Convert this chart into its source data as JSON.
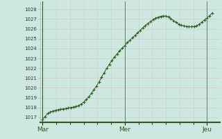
{
  "title": "",
  "bg_color": "#cce8e0",
  "grid_color": "#b8d8d0",
  "line_color": "#2d5a1e",
  "marker_color": "#2d5a1e",
  "ylim": [
    1016.5,
    1028.8
  ],
  "yticks": [
    1017,
    1018,
    1019,
    1020,
    1021,
    1022,
    1023,
    1024,
    1025,
    1026,
    1027,
    1028
  ],
  "xtick_labels": [
    "Mar",
    "Mer",
    "Jeu"
  ],
  "xtick_positions": [
    0,
    32,
    64
  ],
  "xlim": [
    -1,
    69
  ],
  "x_values": [
    0,
    1,
    2,
    3,
    4,
    5,
    6,
    7,
    8,
    9,
    10,
    11,
    12,
    13,
    14,
    15,
    16,
    17,
    18,
    19,
    20,
    21,
    22,
    23,
    24,
    25,
    26,
    27,
    28,
    29,
    30,
    31,
    32,
    33,
    34,
    35,
    36,
    37,
    38,
    39,
    40,
    41,
    42,
    43,
    44,
    45,
    46,
    47,
    48,
    49,
    50,
    51,
    52,
    53,
    54,
    55,
    56,
    57,
    58,
    59,
    60,
    61,
    62,
    63,
    64,
    65,
    66
  ],
  "y_values": [
    1016.8,
    1017.1,
    1017.4,
    1017.55,
    1017.65,
    1017.72,
    1017.78,
    1017.82,
    1017.87,
    1017.9,
    1017.95,
    1018.0,
    1018.05,
    1018.1,
    1018.2,
    1018.35,
    1018.55,
    1018.8,
    1019.1,
    1019.45,
    1019.8,
    1020.2,
    1020.6,
    1021.1,
    1021.55,
    1022.0,
    1022.4,
    1022.8,
    1023.15,
    1023.45,
    1023.75,
    1024.05,
    1024.3,
    1024.6,
    1024.85,
    1025.1,
    1025.35,
    1025.6,
    1025.85,
    1026.1,
    1026.35,
    1026.55,
    1026.75,
    1026.95,
    1027.1,
    1027.2,
    1027.28,
    1027.32,
    1027.3,
    1027.22,
    1027.05,
    1026.85,
    1026.65,
    1026.5,
    1026.38,
    1026.3,
    1026.25,
    1026.22,
    1026.22,
    1026.25,
    1026.3,
    1026.5,
    1026.7,
    1026.9,
    1027.1,
    1027.35,
    1027.6
  ]
}
